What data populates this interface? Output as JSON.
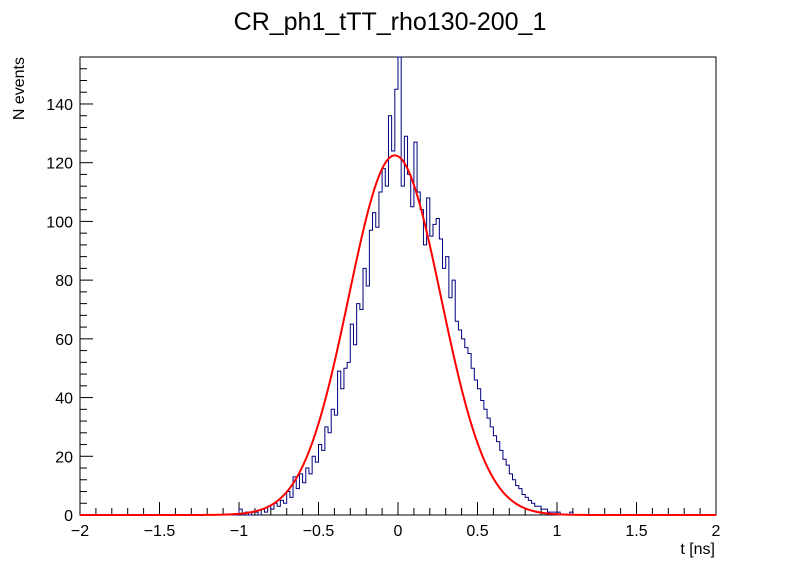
{
  "chart_data": {
    "type": "histogram",
    "title": "CR_ph1_tTT_rho130-200_1",
    "xlabel": "t [ns]",
    "ylabel": "N events",
    "xlim": [
      -2,
      2
    ],
    "ylim": [
      0,
      156
    ],
    "x_ticks": [
      -2,
      -1.5,
      -1,
      -0.5,
      0,
      0.5,
      1,
      1.5,
      2
    ],
    "x_tick_labels": [
      "−2",
      "−1.5",
      "−1",
      "−0.5",
      "0",
      "0.5",
      "1",
      "1.5",
      "2"
    ],
    "y_ticks": [
      0,
      20,
      40,
      60,
      80,
      100,
      120,
      140
    ],
    "y_tick_labels": [
      "0",
      "20",
      "40",
      "60",
      "80",
      "100",
      "120",
      "140"
    ],
    "grid": false,
    "legend": "none",
    "series": [
      {
        "type": "step-histogram",
        "color": "#00007f",
        "bin_width": 0.02,
        "bin_range": [
          -2,
          2
        ],
        "bins": [
          [
            -1.5,
            0
          ],
          [
            -1.48,
            0
          ],
          [
            -1.46,
            0
          ],
          [
            -1.44,
            0
          ],
          [
            -1.42,
            0
          ],
          [
            -1.4,
            0
          ],
          [
            -1.38,
            0
          ],
          [
            -1.36,
            0
          ],
          [
            -1.34,
            0
          ],
          [
            -1.32,
            0
          ],
          [
            -1.3,
            0
          ],
          [
            -1.28,
            0
          ],
          [
            -1.26,
            0
          ],
          [
            -1.24,
            0
          ],
          [
            -1.22,
            0
          ],
          [
            -1.2,
            0
          ],
          [
            -1.18,
            0
          ],
          [
            -1.16,
            0
          ],
          [
            -1.14,
            0
          ],
          [
            -1.12,
            0
          ],
          [
            -1.1,
            0
          ],
          [
            -1.08,
            0
          ],
          [
            -1.06,
            0
          ],
          [
            -1.04,
            0
          ],
          [
            -1.02,
            0
          ],
          [
            -1.0,
            2
          ],
          [
            -0.98,
            0
          ],
          [
            -0.96,
            1
          ],
          [
            -0.94,
            0
          ],
          [
            -0.92,
            1
          ],
          [
            -0.9,
            1
          ],
          [
            -0.88,
            0
          ],
          [
            -0.86,
            2
          ],
          [
            -0.84,
            1
          ],
          [
            -0.82,
            3
          ],
          [
            -0.8,
            2
          ],
          [
            -0.78,
            4
          ],
          [
            -0.76,
            3
          ],
          [
            -0.74,
            5
          ],
          [
            -0.72,
            4
          ],
          [
            -0.7,
            8
          ],
          [
            -0.68,
            6
          ],
          [
            -0.66,
            13
          ],
          [
            -0.64,
            9
          ],
          [
            -0.62,
            14
          ],
          [
            -0.6,
            11
          ],
          [
            -0.58,
            16
          ],
          [
            -0.56,
            14
          ],
          [
            -0.54,
            20
          ],
          [
            -0.52,
            18
          ],
          [
            -0.5,
            24
          ],
          [
            -0.48,
            22
          ],
          [
            -0.46,
            30
          ],
          [
            -0.44,
            28
          ],
          [
            -0.42,
            36
          ],
          [
            -0.4,
            34
          ],
          [
            -0.38,
            49
          ],
          [
            -0.36,
            43
          ],
          [
            -0.34,
            50
          ],
          [
            -0.32,
            52
          ],
          [
            -0.3,
            65
          ],
          [
            -0.28,
            58
          ],
          [
            -0.26,
            72
          ],
          [
            -0.24,
            70
          ],
          [
            -0.22,
            84
          ],
          [
            -0.2,
            78
          ],
          [
            -0.18,
            97
          ],
          [
            -0.16,
            103
          ],
          [
            -0.14,
            98
          ],
          [
            -0.12,
            110
          ],
          [
            -0.1,
            118
          ],
          [
            -0.08,
            112
          ],
          [
            -0.06,
            136
          ],
          [
            -0.04,
            124
          ],
          [
            -0.02,
            145
          ],
          [
            0.0,
            156
          ],
          [
            0.02,
            112
          ],
          [
            0.04,
            129
          ],
          [
            0.06,
            116
          ],
          [
            0.08,
            105
          ],
          [
            0.1,
            127
          ],
          [
            0.12,
            110
          ],
          [
            0.14,
            104
          ],
          [
            0.16,
            92
          ],
          [
            0.18,
            108
          ],
          [
            0.2,
            95
          ],
          [
            0.22,
            99
          ],
          [
            0.24,
            101
          ],
          [
            0.26,
            94
          ],
          [
            0.28,
            84
          ],
          [
            0.3,
            88
          ],
          [
            0.32,
            74
          ],
          [
            0.34,
            80
          ],
          [
            0.36,
            66
          ],
          [
            0.38,
            63
          ],
          [
            0.4,
            60
          ],
          [
            0.42,
            57
          ],
          [
            0.44,
            55
          ],
          [
            0.46,
            50
          ],
          [
            0.48,
            46
          ],
          [
            0.5,
            43
          ],
          [
            0.52,
            39
          ],
          [
            0.54,
            36
          ],
          [
            0.56,
            33
          ],
          [
            0.58,
            30
          ],
          [
            0.6,
            27
          ],
          [
            0.62,
            25
          ],
          [
            0.64,
            22
          ],
          [
            0.66,
            19
          ],
          [
            0.68,
            17
          ],
          [
            0.7,
            14
          ],
          [
            0.72,
            12
          ],
          [
            0.74,
            10
          ],
          [
            0.76,
            9
          ],
          [
            0.78,
            7
          ],
          [
            0.8,
            6
          ],
          [
            0.82,
            5
          ],
          [
            0.84,
            4
          ],
          [
            0.86,
            3
          ],
          [
            0.88,
            3
          ],
          [
            0.9,
            2
          ],
          [
            0.92,
            2
          ],
          [
            0.94,
            1
          ],
          [
            0.96,
            1
          ],
          [
            0.98,
            1
          ],
          [
            1.0,
            1
          ],
          [
            1.02,
            0
          ],
          [
            1.04,
            0
          ],
          [
            1.06,
            0
          ],
          [
            1.08,
            1
          ]
        ]
      },
      {
        "type": "gaussian-fit",
        "color": "#ff0000",
        "amplitude": 122.5,
        "mean": -0.02,
        "sigma": 0.29,
        "x_range": [
          -2,
          2
        ]
      }
    ]
  }
}
